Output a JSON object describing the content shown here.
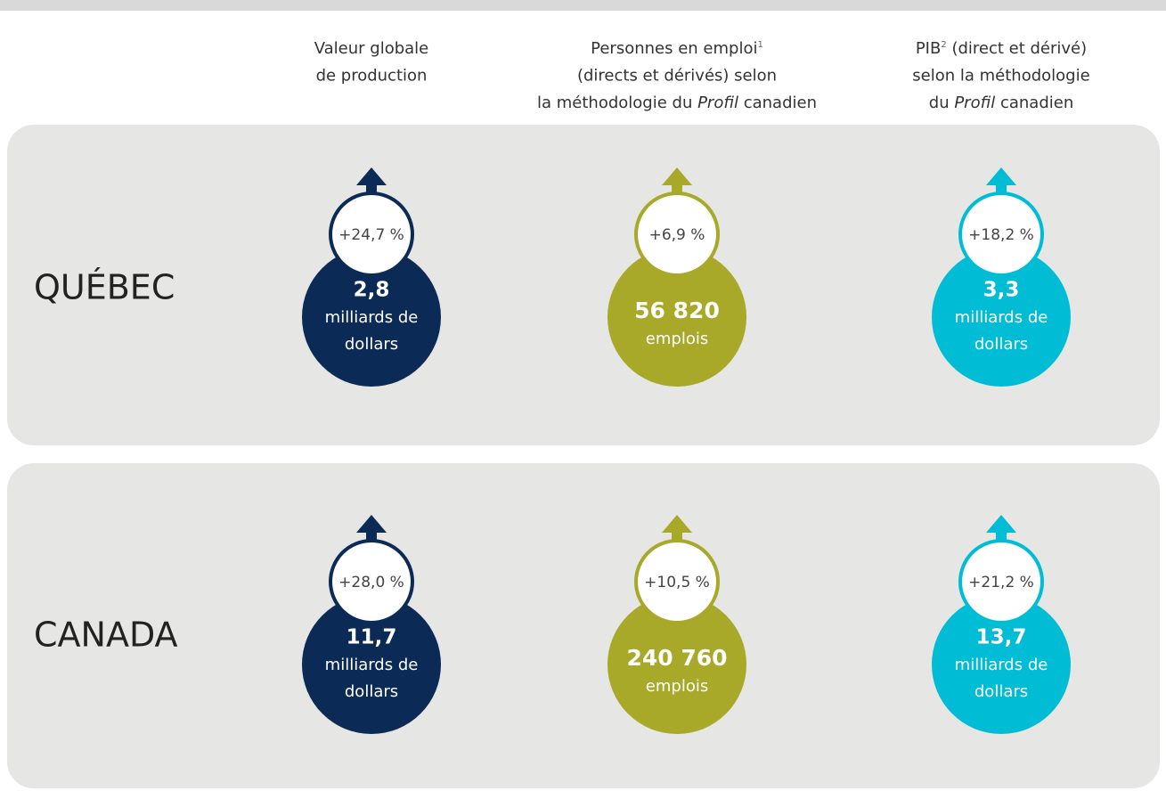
{
  "columns": [
    {
      "color": "#0b2a55",
      "lines": [
        [
          {
            "text": "Valeur globale"
          }
        ],
        [
          {
            "text": "de production"
          }
        ]
      ]
    },
    {
      "color": "#a8a929",
      "lines": [
        [
          {
            "text": "Personnes en emploi"
          },
          {
            "text": "1",
            "sup": true
          }
        ],
        [
          {
            "text": "(directs et dérivés) selon"
          }
        ],
        [
          {
            "text": "la méthodologie du "
          },
          {
            "text": "Profil",
            "italic": true
          },
          {
            "text": " canadien"
          }
        ]
      ]
    },
    {
      "color": "#00bcd4",
      "lines": [
        [
          {
            "text": "PIB"
          },
          {
            "text": "2",
            "sup": true
          },
          {
            "text": " (direct et dérivé)"
          }
        ],
        [
          {
            "text": "selon la méthodologie"
          }
        ],
        [
          {
            "text": "du "
          },
          {
            "text": "Profil",
            "italic": true
          },
          {
            "text": " canadien"
          }
        ]
      ]
    }
  ],
  "rows": [
    {
      "label": "QUÉBEC",
      "cells": [
        {
          "change": "+24,7 %",
          "value": "2,8",
          "unit_lines": [
            "milliards de",
            "dollars"
          ]
        },
        {
          "change": "+6,9 %",
          "value": "56 820",
          "unit_lines": [
            "emplois"
          ]
        },
        {
          "change": "+18,2 %",
          "value": "3,3",
          "unit_lines": [
            "milliards de",
            "dollars"
          ]
        }
      ]
    },
    {
      "label": "CANADA",
      "cells": [
        {
          "change": "+28,0 %",
          "value": "11,7",
          "unit_lines": [
            "milliards de",
            "dollars"
          ]
        },
        {
          "change": "+10,5 %",
          "value": "240 760",
          "unit_lines": [
            "emplois"
          ]
        },
        {
          "change": "+21,2 %",
          "value": "13,7",
          "unit_lines": [
            "milliards de",
            "dollars"
          ]
        }
      ]
    }
  ]
}
